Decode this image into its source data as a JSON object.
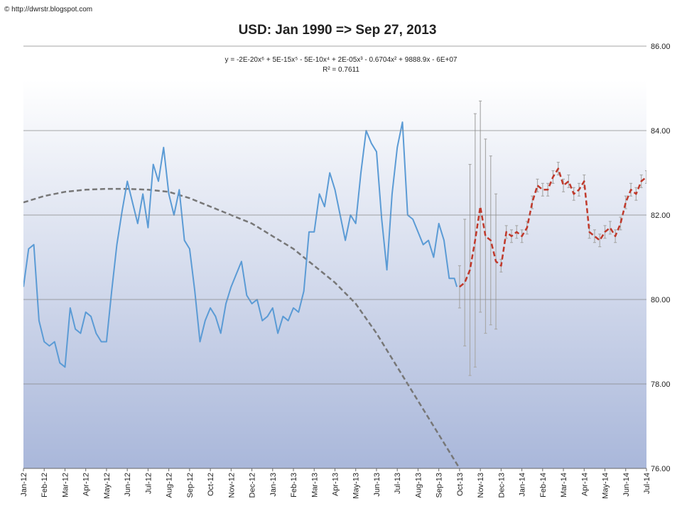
{
  "source": "© http://dwrstr.blogspot.com",
  "chart_data": {
    "type": "line",
    "title": "USD: Jan 1990 => Sep 27, 2013",
    "annotations": [
      "y = -2E-20x⁶ + 5E-15x⁵ - 5E-10x⁴ + 2E-05x³ - 0.6704x² + 9888.9x - 6E+07",
      "R² = 0.7611"
    ],
    "xlim": [
      0,
      30
    ],
    "xticks": [
      {
        "value": 0,
        "label": "Jan-12"
      },
      {
        "value": 1,
        "label": "Feb-12"
      },
      {
        "value": 2,
        "label": "Mar-12"
      },
      {
        "value": 3,
        "label": "Apr-12"
      },
      {
        "value": 4,
        "label": "May-12"
      },
      {
        "value": 5,
        "label": "Jun-12"
      },
      {
        "value": 6,
        "label": "Jul-12"
      },
      {
        "value": 7,
        "label": "Aug-12"
      },
      {
        "value": 8,
        "label": "Sep-12"
      },
      {
        "value": 9,
        "label": "Oct-12"
      },
      {
        "value": 10,
        "label": "Nov-12"
      },
      {
        "value": 11,
        "label": "Dec-12"
      },
      {
        "value": 12,
        "label": "Jan-13"
      },
      {
        "value": 13,
        "label": "Feb-13"
      },
      {
        "value": 14,
        "label": "Mar-13"
      },
      {
        "value": 15,
        "label": "Apr-13"
      },
      {
        "value": 16,
        "label": "May-13"
      },
      {
        "value": 17,
        "label": "Jun-13"
      },
      {
        "value": 18,
        "label": "Jul-13"
      },
      {
        "value": 19,
        "label": "Aug-13"
      },
      {
        "value": 20,
        "label": "Sep-13"
      },
      {
        "value": 21,
        "label": "Oct-13"
      },
      {
        "value": 22,
        "label": "Nov-13"
      },
      {
        "value": 23,
        "label": "Dec-13"
      },
      {
        "value": 24,
        "label": "Jan-14"
      },
      {
        "value": 25,
        "label": "Feb-14"
      },
      {
        "value": 26,
        "label": "Mar-14"
      },
      {
        "value": 27,
        "label": "Apr-14"
      },
      {
        "value": 28,
        "label": "May-14"
      },
      {
        "value": 29,
        "label": "Jun-14"
      },
      {
        "value": 30,
        "label": "Jul-14"
      }
    ],
    "ylim": [
      76,
      86
    ],
    "yticks": [
      {
        "value": 76,
        "label": "76.00"
      },
      {
        "value": 78,
        "label": "78.00"
      },
      {
        "value": 80,
        "label": "80.00"
      },
      {
        "value": 82,
        "label": "82.00"
      },
      {
        "value": 84,
        "label": "84.00"
      },
      {
        "value": 86,
        "label": "86.00"
      }
    ],
    "grid": true,
    "series": [
      {
        "color": "#5b9bd5",
        "style": "solid",
        "x": [
          0,
          0.25,
          0.5,
          0.75,
          1,
          1.25,
          1.5,
          1.75,
          2,
          2.25,
          2.5,
          2.75,
          3,
          3.25,
          3.5,
          3.75,
          4,
          4.25,
          4.5,
          4.75,
          5,
          5.25,
          5.5,
          5.75,
          6,
          6.25,
          6.5,
          6.75,
          7,
          7.25,
          7.5,
          7.75,
          8,
          8.25,
          8.5,
          8.75,
          9,
          9.25,
          9.5,
          9.75,
          10,
          10.25,
          10.5,
          10.75,
          11,
          11.25,
          11.5,
          11.75,
          12,
          12.25,
          12.5,
          12.75,
          13,
          13.25,
          13.5,
          13.75,
          14,
          14.25,
          14.5,
          14.75,
          15,
          15.25,
          15.5,
          15.75,
          16,
          16.25,
          16.5,
          16.75,
          17,
          17.25,
          17.5,
          17.75,
          18,
          18.25,
          18.5,
          18.75,
          19,
          19.25,
          19.5,
          19.75,
          20,
          20.25,
          20.5,
          20.75,
          20.87
        ],
        "values": [
          80.3,
          81.2,
          81.3,
          79.5,
          79.0,
          78.9,
          79.0,
          78.5,
          78.4,
          79.8,
          79.3,
          79.2,
          79.7,
          79.6,
          79.2,
          79.0,
          79.0,
          80.2,
          81.3,
          82.1,
          82.8,
          82.3,
          81.8,
          82.5,
          81.7,
          83.2,
          82.8,
          83.6,
          82.5,
          82.0,
          82.6,
          81.4,
          81.2,
          80.2,
          79.0,
          79.5,
          79.8,
          79.6,
          79.2,
          79.9,
          80.3,
          80.6,
          80.9,
          80.1,
          79.9,
          80.0,
          79.5,
          79.6,
          79.8,
          79.2,
          79.6,
          79.5,
          79.8,
          79.7,
          80.2,
          81.6,
          81.6,
          82.5,
          82.2,
          83.0,
          82.6,
          82.0,
          81.4,
          82.0,
          81.8,
          83.0,
          84.0,
          83.7,
          83.5,
          81.9,
          80.7,
          82.5,
          83.6,
          84.2,
          82.0,
          81.9,
          81.6,
          81.3,
          81.4,
          81.0,
          81.8,
          81.4,
          80.5,
          80.5,
          80.3
        ]
      },
      {
        "color": "#c0392b",
        "style": "dashed",
        "error_color": "#aaaaaa",
        "x": [
          21,
          21.25,
          21.5,
          21.75,
          22,
          22.25,
          22.5,
          22.75,
          23,
          23.25,
          23.5,
          23.75,
          24,
          24.25,
          24.5,
          24.75,
          25,
          25.25,
          25.5,
          25.75,
          26,
          26.25,
          26.5,
          26.75,
          27,
          27.25,
          27.5,
          27.75,
          28,
          28.25,
          28.5,
          28.75,
          29,
          29.25,
          29.5,
          29.75,
          30
        ],
        "values": [
          80.3,
          80.4,
          80.7,
          81.4,
          82.2,
          81.5,
          81.4,
          80.9,
          80.8,
          81.6,
          81.5,
          81.6,
          81.5,
          81.7,
          82.3,
          82.7,
          82.6,
          82.6,
          82.9,
          83.1,
          82.7,
          82.8,
          82.5,
          82.6,
          82.8,
          81.6,
          81.5,
          81.4,
          81.6,
          81.7,
          81.5,
          81.8,
          82.3,
          82.6,
          82.5,
          82.8,
          82.9
        ],
        "errors": [
          0.5,
          1.5,
          2.5,
          3.0,
          2.5,
          2.3,
          2.0,
          1.6,
          0.15,
          0.15,
          0.15,
          0.15,
          0.15,
          0.15,
          0.15,
          0.15,
          0.15,
          0.15,
          0.15,
          0.15,
          0.15,
          0.15,
          0.15,
          0.15,
          0.15,
          0.15,
          0.15,
          0.15,
          0.15,
          0.15,
          0.15,
          0.15,
          0.15,
          0.15,
          0.15,
          0.15,
          0.15
        ]
      },
      {
        "color": "#777777",
        "style": "dashed",
        "x": [
          0,
          1,
          2,
          3,
          4,
          5,
          6,
          7,
          8,
          9,
          10,
          11,
          12,
          13,
          14,
          15,
          16,
          17,
          18,
          19,
          20,
          21
        ],
        "values": [
          82.3,
          82.45,
          82.55,
          82.6,
          82.62,
          82.62,
          82.6,
          82.55,
          82.4,
          82.2,
          82.0,
          81.8,
          81.5,
          81.2,
          80.8,
          80.4,
          79.9,
          79.2,
          78.4,
          77.6,
          76.8,
          76.0
        ]
      }
    ]
  }
}
